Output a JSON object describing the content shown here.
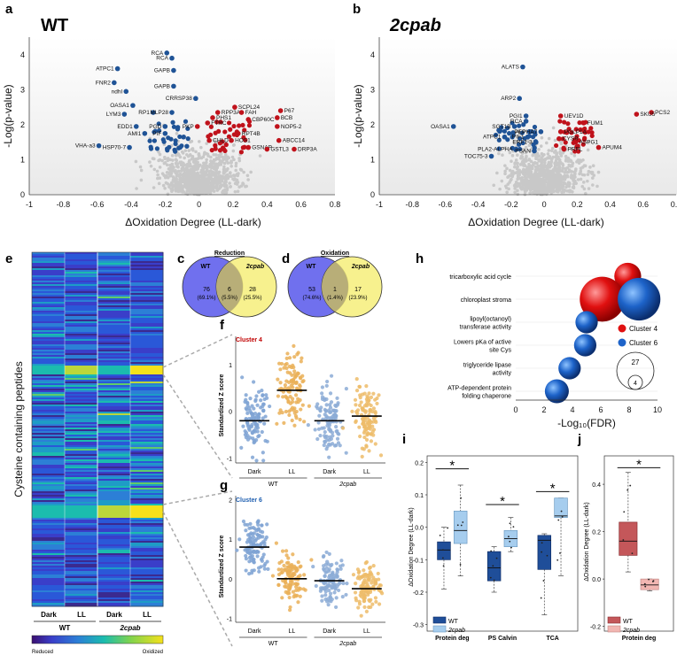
{
  "panels": {
    "a": {
      "letter": "a",
      "title": "WT",
      "xlabel": "ΔOxidation Degree (LL-dark)",
      "ylabel": "-Log(p-value)"
    },
    "b": {
      "letter": "b",
      "title": "2cpab",
      "xlabel": "ΔOxidation Degree (LL-dark)",
      "ylabel": "-Log(p-value)"
    },
    "c": {
      "letter": "c",
      "title": "Reduction",
      "left_name": "WT",
      "right_name": "2cpab",
      "left_count": "76",
      "left_pct": "(69.1%)",
      "mid_count": "6",
      "mid_pct": "(5.5%)",
      "right_count": "28",
      "right_pct": "(25.5%)"
    },
    "d": {
      "letter": "d",
      "title": "Oxidation",
      "left_name": "WT",
      "right_name": "2cpab",
      "left_count": "53",
      "left_pct": "(74.6%)",
      "mid_count": "1",
      "mid_pct": "(1.4%)",
      "right_count": "17",
      "right_pct": "(23.9%)"
    },
    "e": {
      "letter": "e",
      "ylabel": "Cysteine containing peptides",
      "cols": [
        "Dark",
        "LL",
        "Dark",
        "LL"
      ],
      "groups": [
        "WT",
        "2cpab"
      ],
      "cbar_low": "Reduced",
      "cbar_high": "Oxidized"
    },
    "f": {
      "letter": "f",
      "cluster": "Cluster 4",
      "ylabel": "Standardized Z score",
      "cats": [
        "Dark",
        "LL",
        "Dark",
        "LL"
      ],
      "groups": [
        "WT",
        "2cpab"
      ]
    },
    "g": {
      "letter": "g",
      "cluster": "Cluster 6",
      "ylabel": "Standardized Z score",
      "cats": [
        "Dark",
        "LL",
        "Dark",
        "LL"
      ],
      "groups": [
        "WT",
        "2cpab"
      ]
    },
    "h": {
      "letter": "h",
      "xlabel": "-Log₁₀(FDR)",
      "legend": [
        "Cluster 4",
        "Cluster 6"
      ],
      "size_legend": [
        "27",
        "4"
      ]
    },
    "i": {
      "letter": "i",
      "ylabel": "ΔOxidation Degree (LL-dark)",
      "legend": [
        "WT",
        "2cpab"
      ],
      "categories": [
        "Protein\ndeg",
        "PS\nCalvin",
        "TCA"
      ],
      "star": "*"
    },
    "j": {
      "letter": "j",
      "ylabel": "ΔOxidation Degree (LL-dark)",
      "legend": [
        "WT",
        "2cpab"
      ],
      "categories": [
        "Protein\ndeg"
      ],
      "star": "*"
    }
  },
  "chart_data": [
    {
      "id": "a",
      "type": "scatter",
      "title": "WT",
      "xlabel": "ΔOxidation Degree (LL-dark)",
      "ylabel": "-Log(p-value)",
      "xlim": [
        -1,
        0.8
      ],
      "ylim": [
        0,
        4.5
      ],
      "xticks": [
        "-1",
        "-0.8",
        "-0.6",
        "-0.4",
        "-0.2",
        "0",
        "0.2",
        "0.4",
        "0.6",
        "0.8"
      ],
      "yticks": [
        "0",
        "1",
        "2",
        "3",
        "4"
      ],
      "labeled_points": [
        {
          "label": "RCA",
          "x": -0.19,
          "y": 4.05,
          "c": "b"
        },
        {
          "label": "RCA",
          "x": -0.16,
          "y": 3.9,
          "c": "b"
        },
        {
          "label": "ATPC1",
          "x": -0.48,
          "y": 3.6,
          "c": "b"
        },
        {
          "label": "GAPB",
          "x": -0.15,
          "y": 3.55,
          "c": "b"
        },
        {
          "label": "FNR2",
          "x": -0.5,
          "y": 3.2,
          "c": "b"
        },
        {
          "label": "GAPB",
          "x": -0.15,
          "y": 3.1,
          "c": "b"
        },
        {
          "label": "ndhI",
          "x": -0.43,
          "y": 2.95,
          "c": "b"
        },
        {
          "label": "CRRSP38",
          "x": -0.02,
          "y": 2.75,
          "c": "b"
        },
        {
          "label": "OASA1",
          "x": -0.39,
          "y": 2.55,
          "c": "b"
        },
        {
          "label": "SCPL24",
          "x": 0.21,
          "y": 2.5,
          "c": "r"
        },
        {
          "label": "P67",
          "x": 0.48,
          "y": 2.4,
          "c": "r"
        },
        {
          "label": "RPP3A",
          "x": 0.11,
          "y": 2.35,
          "c": "r"
        },
        {
          "label": "FAH",
          "x": 0.25,
          "y": 2.35,
          "c": "r"
        },
        {
          "label": "LYM3",
          "x": -0.44,
          "y": 2.3,
          "c": "b"
        },
        {
          "label": "RP1",
          "x": -0.27,
          "y": 2.35,
          "c": "b"
        },
        {
          "label": "MLP28",
          "x": -0.16,
          "y": 2.35,
          "c": "b"
        },
        {
          "label": "PHS1",
          "x": 0.08,
          "y": 2.2,
          "c": "r"
        },
        {
          "label": "BCB",
          "x": 0.46,
          "y": 2.2,
          "c": "r"
        },
        {
          "label": "CBP60C",
          "x": 0.29,
          "y": 2.15,
          "c": "r"
        },
        {
          "label": "FTRC",
          "x": 0.05,
          "y": 2.05,
          "c": "r"
        },
        {
          "label": "EDD1",
          "x": -0.37,
          "y": 1.95,
          "c": "b"
        },
        {
          "label": "PGD",
          "x": -0.2,
          "y": 1.95,
          "c": "b"
        },
        {
          "label": "PKP",
          "x": -0.01,
          "y": 1.95,
          "c": "r"
        },
        {
          "label": "NOP5-2",
          "x": 0.46,
          "y": 1.95,
          "c": "r"
        },
        {
          "label": "AMI1",
          "x": -0.32,
          "y": 1.75,
          "c": "b"
        },
        {
          "label": "PIF",
          "x": -0.2,
          "y": 1.75,
          "c": "b"
        },
        {
          "label": "RPT4B",
          "x": 0.23,
          "y": 1.75,
          "c": "r"
        },
        {
          "label": "ABCC14",
          "x": 0.47,
          "y": 1.55,
          "c": "r"
        },
        {
          "label": "CHLD",
          "x": 0.06,
          "y": 1.55,
          "c": "r"
        },
        {
          "label": "HOS1",
          "x": 0.19,
          "y": 1.55,
          "c": "r"
        },
        {
          "label": "VHA-a3",
          "x": -0.59,
          "y": 1.4,
          "c": "b"
        },
        {
          "label": "HSP70-7",
          "x": -0.41,
          "y": 1.35,
          "c": "b"
        },
        {
          "label": "GSNAP",
          "x": 0.29,
          "y": 1.35,
          "c": "r"
        },
        {
          "label": "GSTL3",
          "x": 0.4,
          "y": 1.3,
          "c": "r"
        },
        {
          "label": "DRP3A",
          "x": 0.56,
          "y": 1.3,
          "c": "r"
        }
      ]
    },
    {
      "id": "b",
      "type": "scatter",
      "title": "2cpab",
      "xlabel": "ΔOxidation Degree (LL-dark)",
      "ylabel": "-Log(p-value)",
      "xlim": [
        -1,
        0.8
      ],
      "ylim": [
        0,
        4.5
      ],
      "xticks": [
        "-1",
        "-0.8",
        "-0.6",
        "-0.4",
        "-0.2",
        "0",
        "0.2",
        "0.4",
        "0.6",
        "0.8"
      ],
      "yticks": [
        "0",
        "1",
        "2",
        "3",
        "4"
      ],
      "labeled_points": [
        {
          "label": "ALATS",
          "x": -0.13,
          "y": 3.65,
          "c": "b"
        },
        {
          "label": "ARP2",
          "x": -0.15,
          "y": 2.75,
          "c": "b"
        },
        {
          "label": "PCS2",
          "x": 0.65,
          "y": 2.35,
          "c": "r"
        },
        {
          "label": "SKU5",
          "x": 0.56,
          "y": 2.3,
          "c": "r"
        },
        {
          "label": "UEV1D",
          "x": 0.1,
          "y": 2.25,
          "c": "r"
        },
        {
          "label": "PGI1",
          "x": -0.11,
          "y": 2.25,
          "c": "b"
        },
        {
          "label": "RCA",
          "x": -0.11,
          "y": 2.1,
          "c": "b"
        },
        {
          "label": "FUM1",
          "x": 0.24,
          "y": 2.05,
          "c": "r"
        },
        {
          "label": "OASA1",
          "x": -0.55,
          "y": 1.95,
          "c": "b"
        },
        {
          "label": "SGT1B",
          "x": -0.18,
          "y": 1.95,
          "c": "b"
        },
        {
          "label": "PEP",
          "x": -0.09,
          "y": 1.8,
          "c": "b"
        },
        {
          "label": "ALPHA7",
          "x": -0.02,
          "y": 1.8,
          "c": "b"
        },
        {
          "label": "PGLP1A",
          "x": 0.1,
          "y": 1.8,
          "c": "r"
        },
        {
          "label": "ATPC1",
          "x": -0.24,
          "y": 1.65,
          "c": "b"
        },
        {
          "label": "PIF1",
          "x": -0.1,
          "y": 1.65,
          "c": "b"
        },
        {
          "label": "CYSB",
          "x": 0.09,
          "y": 1.6,
          "c": "r"
        },
        {
          "label": "ASPG1",
          "x": 0.19,
          "y": 1.5,
          "c": "r"
        },
        {
          "label": "ERF1-3",
          "x": -0.05,
          "y": 1.5,
          "c": "b"
        },
        {
          "label": "APUM4",
          "x": 0.33,
          "y": 1.35,
          "c": "r"
        },
        {
          "label": "PRPL",
          "x": 0.12,
          "y": 1.3,
          "c": "r"
        },
        {
          "label": "PLA2-ALPHA",
          "x": -0.17,
          "y": 1.3,
          "c": "b"
        },
        {
          "label": "PSAN",
          "x": -0.06,
          "y": 1.25,
          "c": "b"
        },
        {
          "label": "TOC75-3",
          "x": -0.32,
          "y": 1.1,
          "c": "b"
        }
      ]
    },
    {
      "id": "f",
      "type": "scatter",
      "title": "Cluster 4",
      "ylabel": "Standardized Z score",
      "categories": [
        "Dark",
        "LL",
        "Dark",
        "LL"
      ],
      "ylim": [
        -1.1,
        1.6
      ],
      "yticks": [
        "-1",
        "0",
        "1"
      ],
      "means": [
        -0.2,
        0.45,
        -0.2,
        -0.1
      ]
    },
    {
      "id": "g",
      "type": "scatter",
      "title": "Cluster 6",
      "ylabel": "Standardized Z score",
      "categories": [
        "Dark",
        "LL",
        "Dark",
        "LL"
      ],
      "ylim": [
        -1.1,
        2.1
      ],
      "yticks": [
        "-1",
        "0",
        "1",
        "2"
      ],
      "means": [
        0.8,
        0.0,
        -0.05,
        -0.25
      ]
    },
    {
      "id": "h",
      "type": "scatter",
      "xlabel": "-Log₁₀(FDR)",
      "xlim": [
        0,
        10
      ],
      "xticks": [
        "0",
        "2",
        "4",
        "6",
        "8",
        "10"
      ],
      "terms": [
        "tricarboxylic acid cycle",
        "chloroplast stroma",
        "lipoyl(octanoyl) transferase activity",
        "Lowers pKa of active site Cys",
        "triglyceride lipase activity",
        "ATP-dependent protein folding chaperone"
      ],
      "bubbles": [
        {
          "term": "tricarboxylic acid cycle",
          "x": 7.9,
          "size": 8,
          "cluster": "Cluster 4"
        },
        {
          "term": "chloroplast stroma",
          "x": 6.1,
          "size": 27,
          "cluster": "Cluster 4"
        },
        {
          "term": "chloroplast stroma",
          "x": 8.7,
          "size": 24,
          "cluster": "Cluster 6"
        },
        {
          "term": "lipoyl(octanoyl) transferase activity",
          "x": 5.0,
          "size": 5,
          "cluster": "Cluster 6"
        },
        {
          "term": "Lowers pKa of active site Cys",
          "x": 4.9,
          "size": 5,
          "cluster": "Cluster 6"
        },
        {
          "term": "triglyceride lipase activity",
          "x": 3.8,
          "size": 5,
          "cluster": "Cluster 6"
        },
        {
          "term": "ATP-dependent protein folding chaperone",
          "x": 2.9,
          "size": 6,
          "cluster": "Cluster 6"
        }
      ]
    },
    {
      "id": "i",
      "type": "bar",
      "ylabel": "ΔOxidation Degree (LL-dark)",
      "categories": [
        "Protein deg",
        "PS Calvin",
        "TCA"
      ],
      "ylim": [
        -0.32,
        0.22
      ],
      "yticks": [
        "-0.3",
        "-0.2",
        "-0.1",
        "0.0",
        "0.1",
        "0.2"
      ],
      "series": [
        {
          "name": "WT",
          "boxes": [
            {
              "q1": -0.1,
              "med": -0.07,
              "q3": -0.045,
              "lo": -0.19,
              "hi": 0.0
            },
            {
              "q1": -0.165,
              "med": -0.125,
              "q3": -0.075,
              "lo": -0.2,
              "hi": -0.06
            },
            {
              "q1": -0.13,
              "med": -0.04,
              "q3": -0.025,
              "lo": -0.27,
              "hi": -0.02
            }
          ]
        },
        {
          "name": "2cpab",
          "boxes": [
            {
              "q1": -0.05,
              "med": -0.01,
              "q3": 0.05,
              "lo": -0.15,
              "hi": 0.13
            },
            {
              "q1": -0.06,
              "med": -0.035,
              "q3": -0.01,
              "lo": -0.075,
              "hi": 0.03
            },
            {
              "q1": 0.03,
              "med": 0.035,
              "q3": 0.09,
              "lo": -0.15,
              "hi": 0.09
            }
          ]
        }
      ]
    },
    {
      "id": "j",
      "type": "bar",
      "ylabel": "ΔOxidation Degree (LL-dark)",
      "categories": [
        "Protein deg"
      ],
      "ylim": [
        -0.22,
        0.52
      ],
      "yticks": [
        "-0.2",
        "0.0",
        "0.2",
        "0.4"
      ],
      "series": [
        {
          "name": "WT",
          "boxes": [
            {
              "q1": 0.1,
              "med": 0.16,
              "q3": 0.24,
              "lo": 0.03,
              "hi": 0.45
            }
          ]
        },
        {
          "name": "2cpab",
          "boxes": [
            {
              "q1": -0.045,
              "med": -0.025,
              "q3": 0.0,
              "lo": -0.05,
              "hi": 0.0
            }
          ]
        }
      ]
    }
  ]
}
